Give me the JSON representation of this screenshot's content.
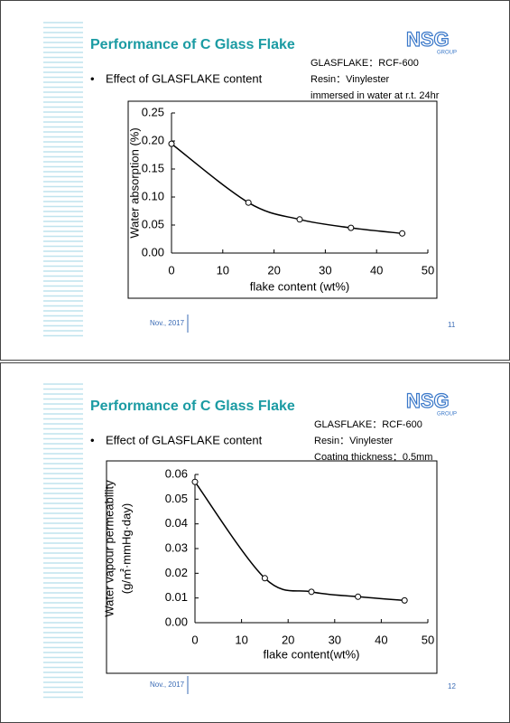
{
  "slides": [
    {
      "title": "Performance of C Glass Flake",
      "bullet": "Effect of GLASFLAKE content",
      "notes": [
        "GLASFLAKE：RCF-600",
        "Resin：Vinylester",
        "immersed in water at r.t. 24hr"
      ],
      "logo": "NSG",
      "logo_sub": "GROUP",
      "date": "Nov., 2017",
      "page": "11"
    },
    {
      "title": "Performance of C Glass Flake",
      "bullet": "Effect of GLASFLAKE content",
      "notes": [
        "GLASFLAKE：RCF-600",
        "Resin：Vinylester",
        "Coating thickness：0.5mm"
      ],
      "logo": "NSG",
      "logo_sub": "GROUP",
      "date": "Nov., 2017",
      "page": "12"
    }
  ],
  "chart_data": [
    {
      "type": "line",
      "y_label": [
        "Water absorption (%)"
      ],
      "x_label": "flake content (wt%)",
      "x": [
        0,
        15,
        25,
        35,
        45
      ],
      "series": [
        {
          "color": "#000000",
          "values": [
            0.195,
            0.09,
            0.06,
            0.045,
            0.035
          ]
        }
      ],
      "xlim": [
        0,
        50
      ],
      "xticks": [
        0,
        10,
        20,
        30,
        40,
        50
      ],
      "ylim": [
        0,
        0.25
      ],
      "yticks": [
        {
          "value": 0,
          "label": "0.00"
        },
        {
          "value": 0.05,
          "label": "0.05"
        },
        {
          "value": 0.1,
          "label": "0.10"
        },
        {
          "value": 0.15,
          "label": "0.15"
        },
        {
          "value": 0.2,
          "label": "0.20"
        },
        {
          "value": 0.25,
          "label": "0.25"
        }
      ]
    },
    {
      "type": "line",
      "y_label": [
        "Water vapour permeability",
        "(g/㎡·mmHg·day)"
      ],
      "x_label": "flake content(wt%)",
      "x": [
        0,
        15,
        25,
        35,
        45
      ],
      "series": [
        {
          "color": "#000000",
          "values": [
            0.057,
            0.018,
            0.0125,
            0.0105,
            0.009
          ]
        }
      ],
      "xlim": [
        0,
        50
      ],
      "xticks": [
        0,
        10,
        20,
        30,
        40,
        50
      ],
      "ylim": [
        0,
        0.06
      ],
      "yticks": [
        {
          "value": 0,
          "label": "0.00"
        },
        {
          "value": 0.01,
          "label": "0.01"
        },
        {
          "value": 0.02,
          "label": "0.02"
        },
        {
          "value": 0.03,
          "label": "0.03"
        },
        {
          "value": 0.04,
          "label": "0.04"
        },
        {
          "value": 0.05,
          "label": "0.05"
        },
        {
          "value": 0.06,
          "label": "0.06"
        }
      ]
    }
  ]
}
